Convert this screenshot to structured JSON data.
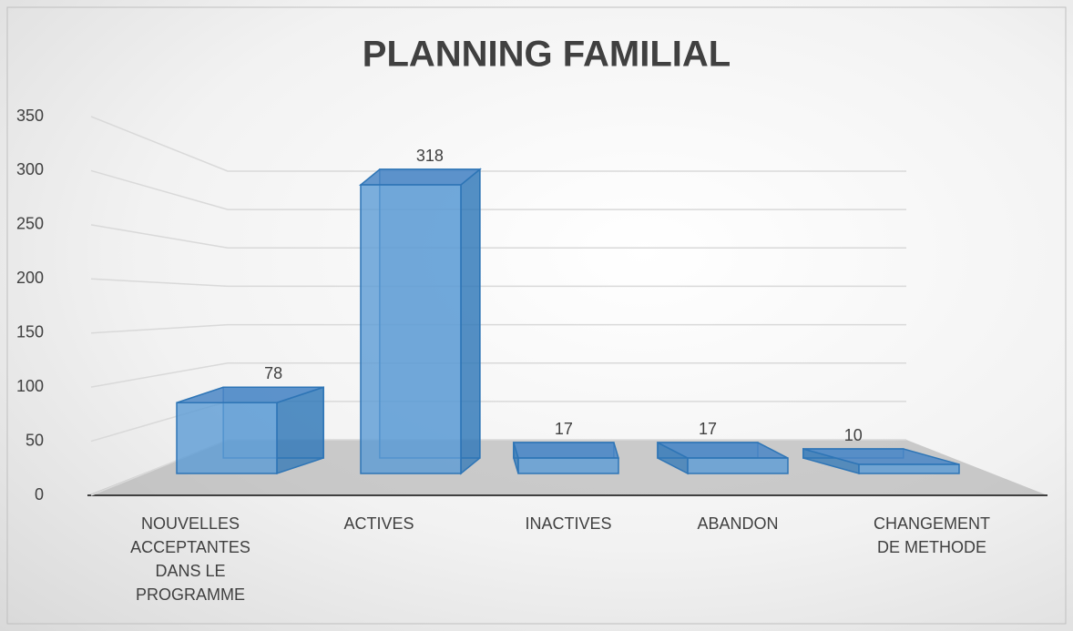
{
  "chart_data": {
    "type": "bar3d",
    "title": "PLANNING FAMILIAL",
    "categories": [
      "NOUVELLES ACCEPTANTES DANS LE PROGRAMME",
      "ACTIVES",
      "INACTIVES",
      "ABANDON",
      "CHANGEMENT DE METHODE"
    ],
    "values": [
      78,
      318,
      17,
      17,
      10
    ],
    "color": "#5b9bd5",
    "ylim": [
      0,
      350
    ],
    "yticks": [
      0,
      50,
      100,
      150,
      200,
      250,
      300,
      350
    ],
    "grid": true
  }
}
